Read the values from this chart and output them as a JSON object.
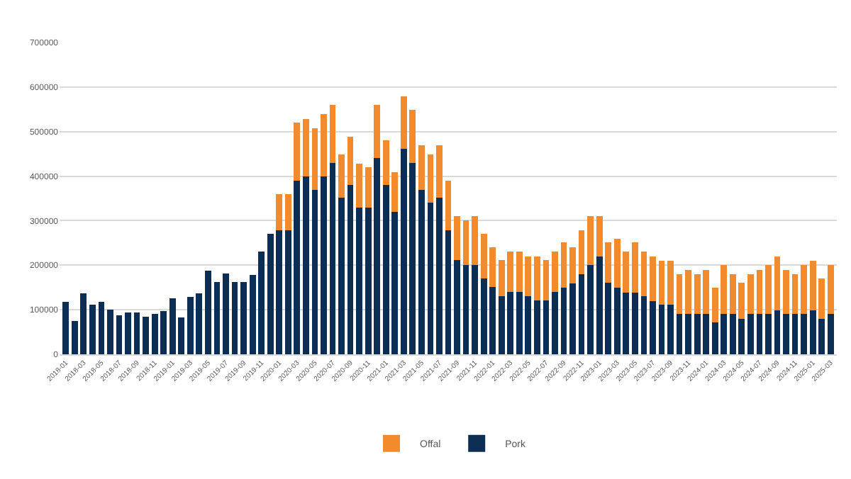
{
  "chart_data": {
    "type": "bar",
    "stacked": true,
    "categories": [
      "2018-01",
      null,
      "2018-03",
      null,
      "2018-05",
      null,
      "2018-07",
      null,
      "2018-09",
      null,
      "2018-11",
      null,
      "2019-01",
      null,
      "2019-03",
      null,
      "2019-05",
      null,
      "2019-07",
      null,
      "2019-09",
      null,
      "2019-11",
      null,
      "2020-01",
      null,
      "2020-03",
      null,
      "2020-05",
      null,
      "2020-07",
      null,
      "2020-09",
      null,
      "2020-11",
      null,
      "2021-01",
      null,
      "2021-03",
      null,
      "2021-05",
      null,
      "2021-07",
      null,
      "2021-09",
      null,
      "2021-11",
      null,
      "2022-01",
      null,
      "2022-03",
      null,
      "2022-05",
      null,
      "2022-07",
      null,
      "2022-09",
      null,
      "2022-11",
      null,
      "2023-01",
      null,
      "2023-03",
      null,
      "2023-05",
      null,
      "2023-07",
      null,
      "2023-09",
      null,
      "2023-11",
      null,
      "2024-01",
      null,
      "2024-03",
      null,
      "2024-05",
      null,
      "2024-07",
      null,
      "2024-09",
      null,
      "2024-11",
      null,
      "2025-01",
      null,
      "2025-03"
    ],
    "series": [
      {
        "name": "Pork",
        "color": "#0c2d54",
        "values": [
          117000,
          74000,
          137000,
          112000,
          117000,
          100000,
          88000,
          94000,
          94000,
          84000,
          91000,
          97000,
          126000,
          83000,
          129000,
          137000,
          188000,
          162000,
          182000,
          162000,
          162000,
          178000,
          230000,
          270000,
          278000,
          278000,
          389000,
          400000,
          369000,
          400000,
          430000,
          351000,
          381000,
          330000,
          330000,
          441000,
          381000,
          320000,
          461000,
          430000,
          369000,
          340000,
          351000,
          279000,
          211000,
          200000,
          200000,
          171000,
          151000,
          131000,
          140000,
          140000,
          131000,
          121000,
          121000,
          140000,
          150000,
          159000,
          180000,
          201000,
          220000,
          160000,
          150000,
          139000,
          139000,
          130000,
          120000,
          112000,
          112000,
          90000,
          90000,
          90000,
          90000,
          72000,
          90000,
          90000,
          80000,
          90000,
          90000,
          90000,
          99000,
          90000,
          90000,
          90000,
          99000,
          80000,
          90000
        ]
      },
      {
        "name": "Offal",
        "color": "#f28a2e",
        "values": [
          0,
          0,
          0,
          0,
          0,
          0,
          0,
          0,
          0,
          0,
          0,
          0,
          0,
          0,
          0,
          0,
          0,
          0,
          0,
          0,
          0,
          0,
          0,
          0,
          81000,
          81000,
          132000,
          128000,
          139000,
          139000,
          130000,
          97000,
          107000,
          98000,
          90000,
          119000,
          99000,
          89000,
          118000,
          119000,
          100000,
          108000,
          118000,
          111000,
          99000,
          100000,
          110000,
          99000,
          90000,
          80000,
          90000,
          90000,
          89000,
          99000,
          90000,
          90000,
          101000,
          82000,
          99000,
          109000,
          90000,
          91000,
          110000,
          91000,
          112000,
          100000,
          100000,
          98000,
          98000,
          90000,
          100000,
          90000,
          100000,
          78000,
          111000,
          90000,
          80000,
          90000,
          100000,
          111000,
          121000,
          100000,
          90000,
          111000,
          111000,
          91000,
          111000
        ]
      }
    ],
    "ylim": [
      0,
      700000
    ],
    "yticks": [
      0,
      100000,
      200000,
      300000,
      400000,
      500000,
      600000,
      700000
    ],
    "grid": "y",
    "legend": "bottom"
  }
}
